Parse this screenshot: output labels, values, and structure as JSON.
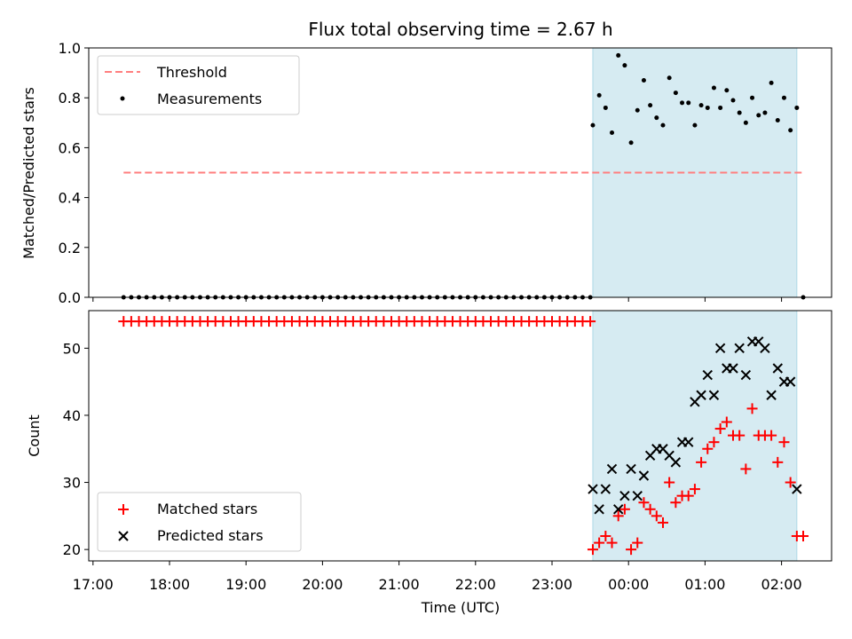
{
  "chart_data": [
    {
      "type": "scatter",
      "title": "Flux total observing time = 2.67 h",
      "xlabel": "",
      "ylabel": "Matched/Predicted stars",
      "ylim": [
        0,
        1.0
      ],
      "yticks": [
        "0.0",
        "0.2",
        "0.4",
        "0.6",
        "0.8",
        "1.0"
      ],
      "legend": [
        "Threshold",
        "Measurements"
      ],
      "legend_position": "top-left",
      "threshold": 0.5,
      "threshold_range": [
        "17:24",
        "02:17"
      ],
      "observing_window": [
        "23:32",
        "02:12"
      ],
      "series": [
        {
          "name": "Measurements",
          "x": [
            "17:24",
            "17:30",
            "17:36",
            "17:42",
            "17:48",
            "17:54",
            "18:00",
            "18:06",
            "18:12",
            "18:18",
            "18:24",
            "18:30",
            "18:36",
            "18:42",
            "18:48",
            "18:54",
            "19:00",
            "19:06",
            "19:12",
            "19:18",
            "19:24",
            "19:30",
            "19:36",
            "19:42",
            "19:48",
            "19:54",
            "20:00",
            "20:06",
            "20:12",
            "20:18",
            "20:24",
            "20:30",
            "20:36",
            "20:42",
            "20:48",
            "20:54",
            "21:00",
            "21:06",
            "21:12",
            "21:18",
            "21:24",
            "21:30",
            "21:36",
            "21:42",
            "21:48",
            "21:54",
            "22:00",
            "22:06",
            "22:12",
            "22:18",
            "22:24",
            "22:30",
            "22:36",
            "22:42",
            "22:48",
            "22:54",
            "23:00",
            "23:06",
            "23:12",
            "23:18",
            "23:24",
            "23:30",
            "23:32",
            "23:37",
            "23:42",
            "23:47",
            "23:52",
            "23:57",
            "00:02",
            "00:07",
            "00:12",
            "00:17",
            "00:22",
            "00:27",
            "00:32",
            "00:37",
            "00:42",
            "00:47",
            "00:52",
            "00:57",
            "01:02",
            "01:07",
            "01:12",
            "01:17",
            "01:22",
            "01:27",
            "01:32",
            "01:37",
            "01:42",
            "01:47",
            "01:52",
            "01:57",
            "02:02",
            "02:07",
            "02:12",
            "02:17"
          ],
          "y": [
            0,
            0,
            0,
            0,
            0,
            0,
            0,
            0,
            0,
            0,
            0,
            0,
            0,
            0,
            0,
            0,
            0,
            0,
            0,
            0,
            0,
            0,
            0,
            0,
            0,
            0,
            0,
            0,
            0,
            0,
            0,
            0,
            0,
            0,
            0,
            0,
            0,
            0,
            0,
            0,
            0,
            0,
            0,
            0,
            0,
            0,
            0,
            0,
            0,
            0,
            0,
            0,
            0,
            0,
            0,
            0,
            0,
            0,
            0,
            0,
            0,
            0,
            0.69,
            0.81,
            0.76,
            0.66,
            0.97,
            0.93,
            0.62,
            0.75,
            0.87,
            0.77,
            0.72,
            0.69,
            0.88,
            0.82,
            0.78,
            0.78,
            0.69,
            0.77,
            0.76,
            0.84,
            0.76,
            0.83,
            0.79,
            0.74,
            0.7,
            0.8,
            0.73,
            0.74,
            0.86,
            0.71,
            0.8,
            0.67,
            0.76,
            0
          ]
        }
      ]
    },
    {
      "type": "scatter",
      "title": "",
      "xlabel": "Time (UTC)",
      "ylabel": "Count",
      "ylim": [
        18.3,
        55.6
      ],
      "yticks": [
        "20",
        "30",
        "40",
        "50"
      ],
      "xticks": [
        "17:00",
        "18:00",
        "19:00",
        "20:00",
        "21:00",
        "22:00",
        "23:00",
        "00:00",
        "01:00",
        "02:00"
      ],
      "legend": [
        "Matched stars",
        "Predicted stars"
      ],
      "legend_position": "bottom-left",
      "observing_window": [
        "23:32",
        "02:12"
      ],
      "series": [
        {
          "name": "Matched stars",
          "x": [
            "17:24",
            "17:30",
            "17:36",
            "17:42",
            "17:48",
            "17:54",
            "18:00",
            "18:06",
            "18:12",
            "18:18",
            "18:24",
            "18:30",
            "18:36",
            "18:42",
            "18:48",
            "18:54",
            "19:00",
            "19:06",
            "19:12",
            "19:18",
            "19:24",
            "19:30",
            "19:36",
            "19:42",
            "19:48",
            "19:54",
            "20:00",
            "20:06",
            "20:12",
            "20:18",
            "20:24",
            "20:30",
            "20:36",
            "20:42",
            "20:48",
            "20:54",
            "21:00",
            "21:06",
            "21:12",
            "21:18",
            "21:24",
            "21:30",
            "21:36",
            "21:42",
            "21:48",
            "21:54",
            "22:00",
            "22:06",
            "22:12",
            "22:18",
            "22:24",
            "22:30",
            "22:36",
            "22:42",
            "22:48",
            "22:54",
            "23:00",
            "23:06",
            "23:12",
            "23:18",
            "23:24",
            "23:30",
            "23:32",
            "23:37",
            "23:42",
            "23:47",
            "23:52",
            "23:57",
            "00:02",
            "00:07",
            "00:12",
            "00:17",
            "00:22",
            "00:27",
            "00:32",
            "00:37",
            "00:42",
            "00:47",
            "00:52",
            "00:57",
            "01:02",
            "01:07",
            "01:12",
            "01:17",
            "01:22",
            "01:27",
            "01:32",
            "01:37",
            "01:42",
            "01:47",
            "01:52",
            "01:57",
            "02:02",
            "02:07",
            "02:12",
            "02:17"
          ],
          "y": [
            54,
            54,
            54,
            54,
            54,
            54,
            54,
            54,
            54,
            54,
            54,
            54,
            54,
            54,
            54,
            54,
            54,
            54,
            54,
            54,
            54,
            54,
            54,
            54,
            54,
            54,
            54,
            54,
            54,
            54,
            54,
            54,
            54,
            54,
            54,
            54,
            54,
            54,
            54,
            54,
            54,
            54,
            54,
            54,
            54,
            54,
            54,
            54,
            54,
            54,
            54,
            54,
            54,
            54,
            54,
            54,
            54,
            54,
            54,
            54,
            54,
            54,
            20,
            21,
            22,
            21,
            25,
            26,
            20,
            21,
            27,
            26,
            25,
            24,
            30,
            27,
            28,
            28,
            29,
            33,
            35,
            36,
            38,
            39,
            37,
            37,
            32,
            41,
            37,
            37,
            37,
            33,
            36,
            30,
            22,
            22
          ]
        },
        {
          "name": "Predicted stars",
          "x": [
            "23:32",
            "23:37",
            "23:42",
            "23:47",
            "23:52",
            "23:57",
            "00:02",
            "00:07",
            "00:12",
            "00:17",
            "00:22",
            "00:27",
            "00:32",
            "00:37",
            "00:42",
            "00:47",
            "00:52",
            "00:57",
            "01:02",
            "01:07",
            "01:12",
            "01:17",
            "01:22",
            "01:27",
            "01:32",
            "01:37",
            "01:42",
            "01:47",
            "01:52",
            "01:57",
            "02:02",
            "02:07",
            "02:12"
          ],
          "y": [
            29,
            26,
            29,
            32,
            26,
            28,
            32,
            28,
            31,
            34,
            35,
            35,
            34,
            33,
            36,
            36,
            42,
            43,
            46,
            43,
            50,
            47,
            47,
            50,
            46,
            51,
            51,
            50,
            43,
            47,
            45,
            45,
            29
          ]
        }
      ]
    }
  ]
}
